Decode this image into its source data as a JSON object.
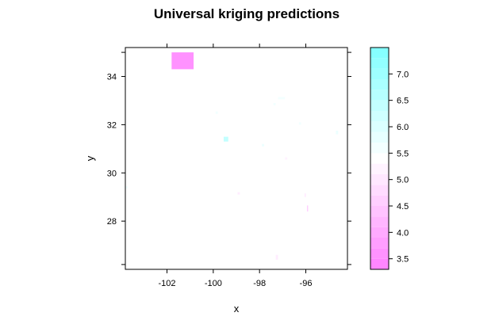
{
  "chart_data": {
    "type": "heatmap",
    "title": "Universal kriging predictions",
    "xlabel": "x",
    "ylabel": "y",
    "xlim": [
      -103.8,
      -94.2
    ],
    "ylim": [
      26.0,
      35.2
    ],
    "x_ticks": [
      {
        "value": -102,
        "label": "-102"
      },
      {
        "value": -100,
        "label": "-100"
      },
      {
        "value": -98,
        "label": "-98"
      },
      {
        "value": -96,
        "label": "-96"
      }
    ],
    "y_ticks": [
      {
        "value": 28,
        "label": "28"
      },
      {
        "value": 30,
        "label": "30"
      },
      {
        "value": 32,
        "label": "32"
      },
      {
        "value": 34,
        "label": "34"
      }
    ],
    "y_minor_ticks": [
      26.2,
      35.0
    ],
    "grid": false,
    "background_prediction": 5.3,
    "cells": [
      {
        "x0": -101.8,
        "x1": -100.85,
        "y0": 34.3,
        "y1": 35.0,
        "value": 3.6
      },
      {
        "x0": -99.55,
        "x1": -99.35,
        "y0": 31.3,
        "y1": 31.5,
        "value": 6.4
      },
      {
        "x0": -95.95,
        "x1": -95.9,
        "y0": 28.4,
        "y1": 28.65,
        "value": 4.6
      },
      {
        "x0": -96.05,
        "x1": -96.0,
        "y0": 29.0,
        "y1": 29.15,
        "value": 5.0
      },
      {
        "x0": -94.7,
        "x1": -94.6,
        "y0": 31.6,
        "y1": 31.75,
        "value": 5.7
      },
      {
        "x0": -99.9,
        "x1": -99.8,
        "y0": 32.45,
        "y1": 32.55,
        "value": 5.6
      },
      {
        "x0": -97.2,
        "x1": -96.9,
        "y0": 33.05,
        "y1": 33.15,
        "value": 5.6
      },
      {
        "x0": -97.4,
        "x1": -97.3,
        "y0": 32.8,
        "y1": 32.9,
        "value": 5.6
      },
      {
        "x0": -98.95,
        "x1": -98.85,
        "y0": 29.1,
        "y1": 29.2,
        "value": 5.1
      },
      {
        "x0": -97.3,
        "x1": -97.2,
        "y0": 26.4,
        "y1": 26.6,
        "value": 5.1
      },
      {
        "x0": -96.3,
        "x1": -96.2,
        "y0": 32.0,
        "y1": 32.1,
        "value": 5.6
      },
      {
        "x0": -97.9,
        "x1": -97.8,
        "y0": 31.1,
        "y1": 31.2,
        "value": 5.7
      },
      {
        "x0": -96.9,
        "x1": -96.8,
        "y0": 30.55,
        "y1": 30.65,
        "value": 5.2
      },
      {
        "x0": -103.8,
        "x1": -103.7,
        "y0": 29.35,
        "y1": 29.45,
        "value": 5.6
      }
    ],
    "colorkey": {
      "range": [
        3.3,
        7.5
      ],
      "breaks": [
        3.3,
        3.5,
        3.7,
        3.9,
        4.1,
        4.3,
        4.5,
        4.7,
        4.9,
        5.1,
        5.3,
        5.5,
        5.7,
        5.9,
        6.1,
        6.3,
        6.5,
        6.7,
        6.9,
        7.1,
        7.3,
        7.5
      ],
      "ticks": [
        {
          "value": 3.5,
          "label": "3.5"
        },
        {
          "value": 4.0,
          "label": "4.0"
        },
        {
          "value": 4.5,
          "label": "4.5"
        },
        {
          "value": 5.0,
          "label": "5.0"
        },
        {
          "value": 5.5,
          "label": "5.5"
        },
        {
          "value": 6.0,
          "label": "6.0"
        },
        {
          "value": 6.5,
          "label": "6.5"
        },
        {
          "value": 7.0,
          "label": "7.0"
        }
      ],
      "low_color": "#ff80ff",
      "mid_color": "#ffffff",
      "high_color": "#80ffff",
      "mid_value": 5.4
    }
  }
}
